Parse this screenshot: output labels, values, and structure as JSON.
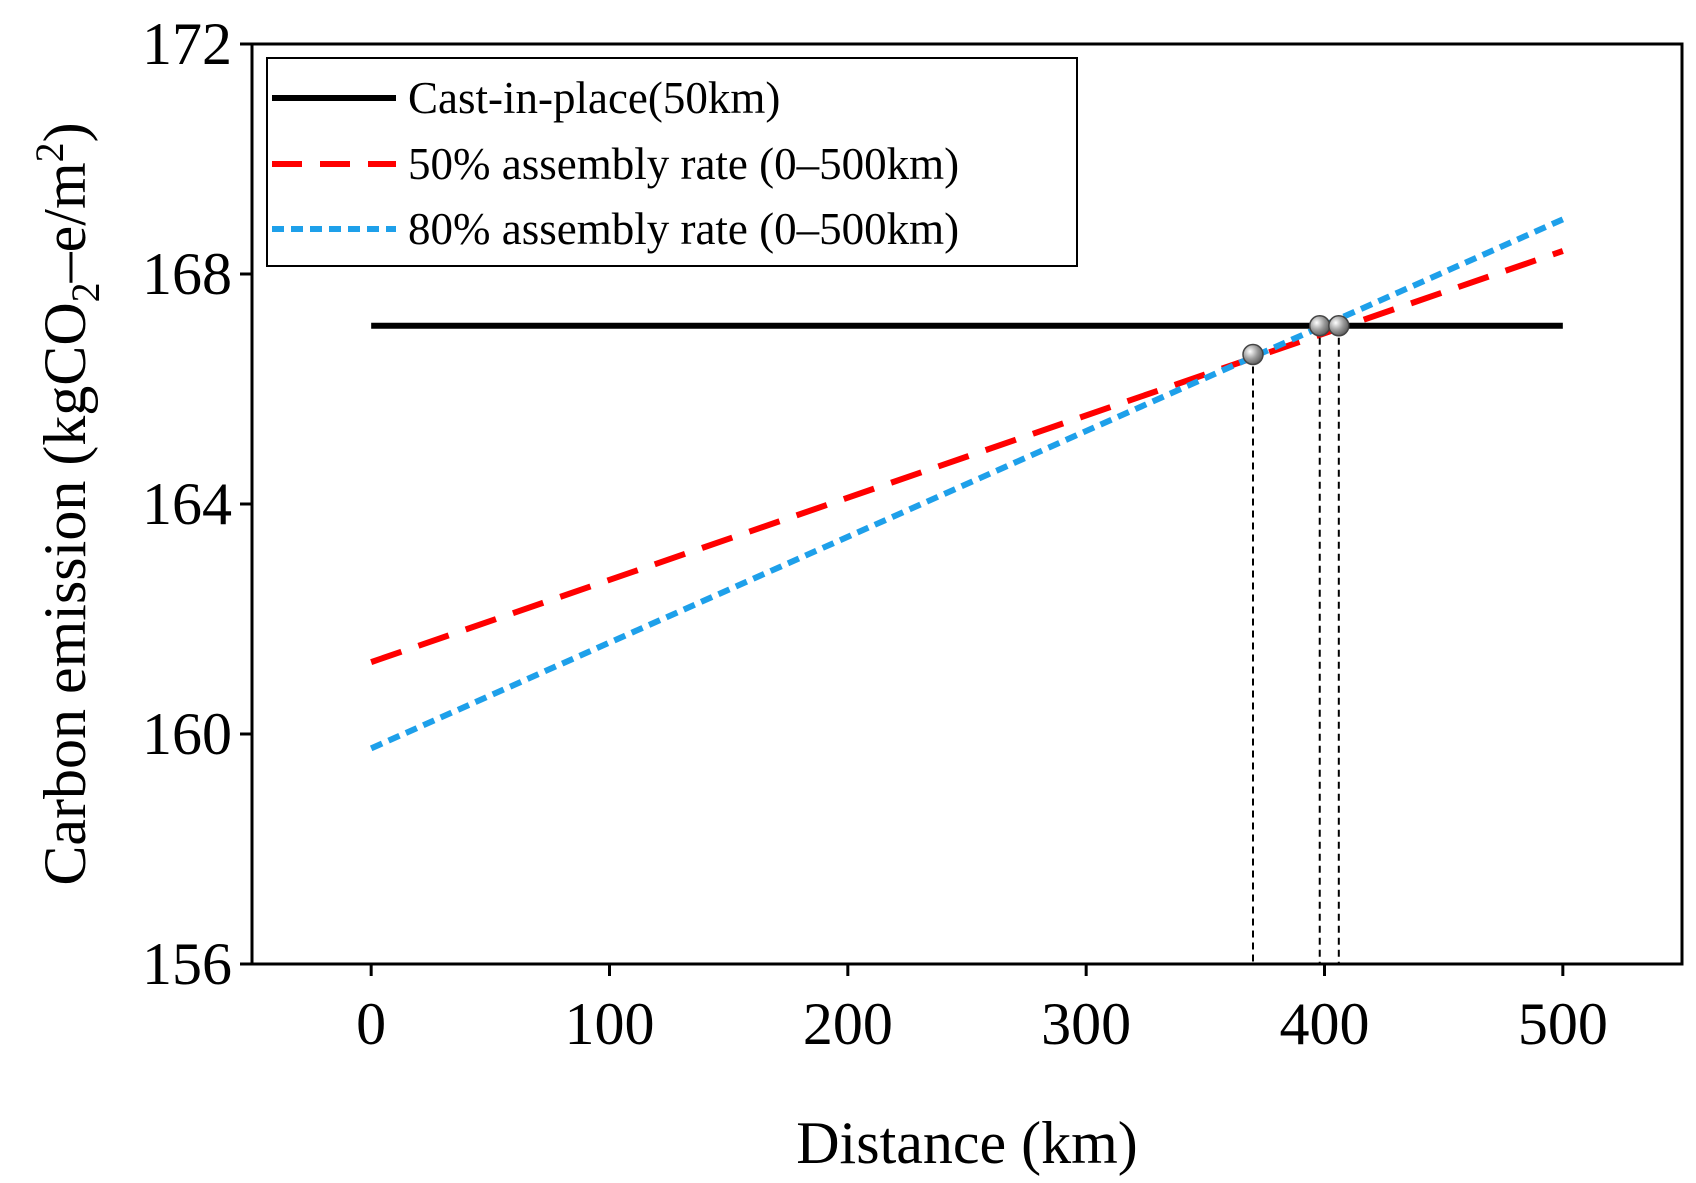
{
  "chart_data": {
    "type": "line",
    "xlabel": "Distance (km)",
    "ylabel": {
      "prefix": "Carbon emission (kgCO",
      "sub": "2",
      "mid": "–e/m",
      "sup": "2",
      "suffix": ")"
    },
    "xlim": [
      -50,
      550
    ],
    "ylim": [
      156,
      172
    ],
    "xticks": [
      0,
      100,
      200,
      300,
      400,
      500
    ],
    "yticks": [
      156,
      160,
      164,
      168,
      172
    ],
    "grid": false,
    "legend_position": "top-left",
    "series": [
      {
        "name": "Cast-in-place(50km)",
        "style": "solid",
        "color": "#000000",
        "x": [
          0,
          500
        ],
        "y": [
          167.1,
          167.1
        ]
      },
      {
        "name": "50% assembly rate (0–500km)",
        "style": "dashed",
        "color": "#ff0000",
        "x": [
          0,
          500
        ],
        "y": [
          161.25,
          168.4
        ]
      },
      {
        "name": "80% assembly rate (0–500km)",
        "style": "dotted",
        "color": "#1ea0ea",
        "x": [
          0,
          500
        ],
        "y": [
          159.75,
          168.95
        ]
      }
    ],
    "markers": [
      {
        "x": 370,
        "y": 166.6
      },
      {
        "x": 398,
        "y": 167.1
      },
      {
        "x": 406,
        "y": 167.1
      }
    ]
  }
}
